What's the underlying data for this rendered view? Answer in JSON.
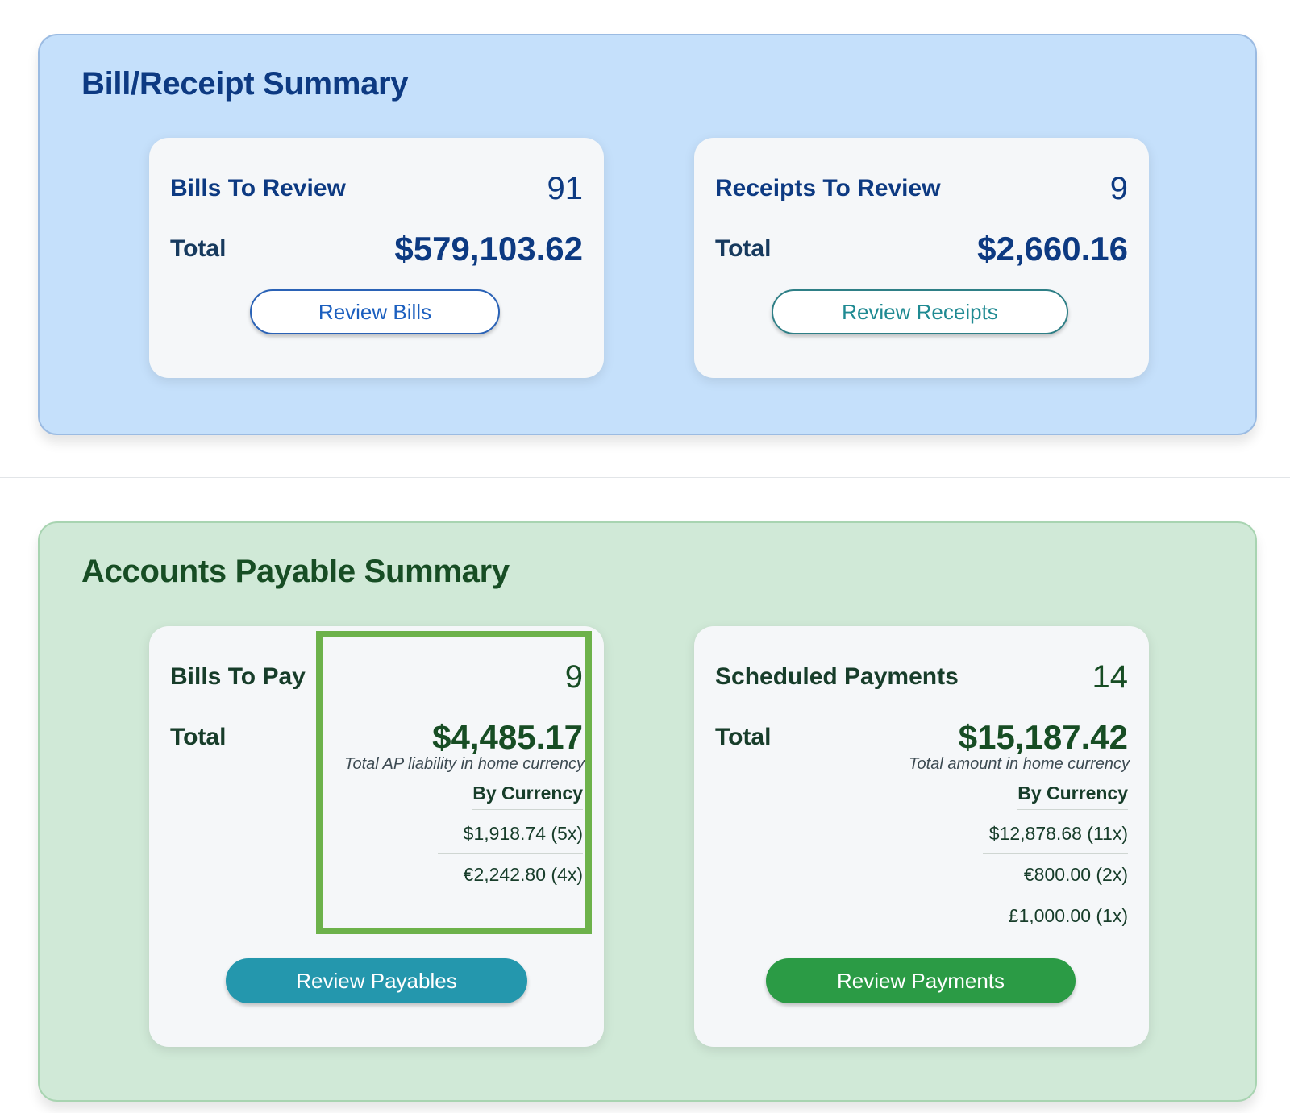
{
  "bill_receipt_summary": {
    "title": "Bill/Receipt Summary",
    "bills_card": {
      "label": "Bills To Review",
      "count": "91",
      "total_label": "Total",
      "total_amount": "$579,103.62",
      "button_label": "Review Bills"
    },
    "receipts_card": {
      "label": "Receipts To Review",
      "count": "9",
      "total_label": "Total",
      "total_amount": "$2,660.16",
      "button_label": "Review Receipts"
    }
  },
  "accounts_payable_summary": {
    "title": "Accounts Payable Summary",
    "bills_to_pay_card": {
      "label": "Bills To Pay",
      "count": "9",
      "total_label": "Total",
      "total_amount": "$4,485.17",
      "subnote": "Total AP liability in home currency",
      "by_currency_label": "By Currency",
      "currencies": [
        "$1,918.74 (5x)",
        "€2,242.80 (4x)"
      ],
      "button_label": "Review Payables"
    },
    "scheduled_payments_card": {
      "label": "Scheduled Payments",
      "count": "14",
      "total_label": "Total",
      "total_amount": "$15,187.42",
      "subnote": "Total amount in home currency",
      "by_currency_label": "By Currency",
      "currencies": [
        "$12,878.68 (11x)",
        "€800.00 (2x)",
        "£1,000.00 (1x)"
      ],
      "button_label": "Review Payments"
    }
  },
  "colors": {
    "bill_section_bg": "#c5e0fb",
    "ap_section_bg": "#d0e9d7",
    "highlight_box": "#6db24b",
    "review_payables_button": "#2497ad",
    "review_payments_button": "#2b9b45"
  }
}
